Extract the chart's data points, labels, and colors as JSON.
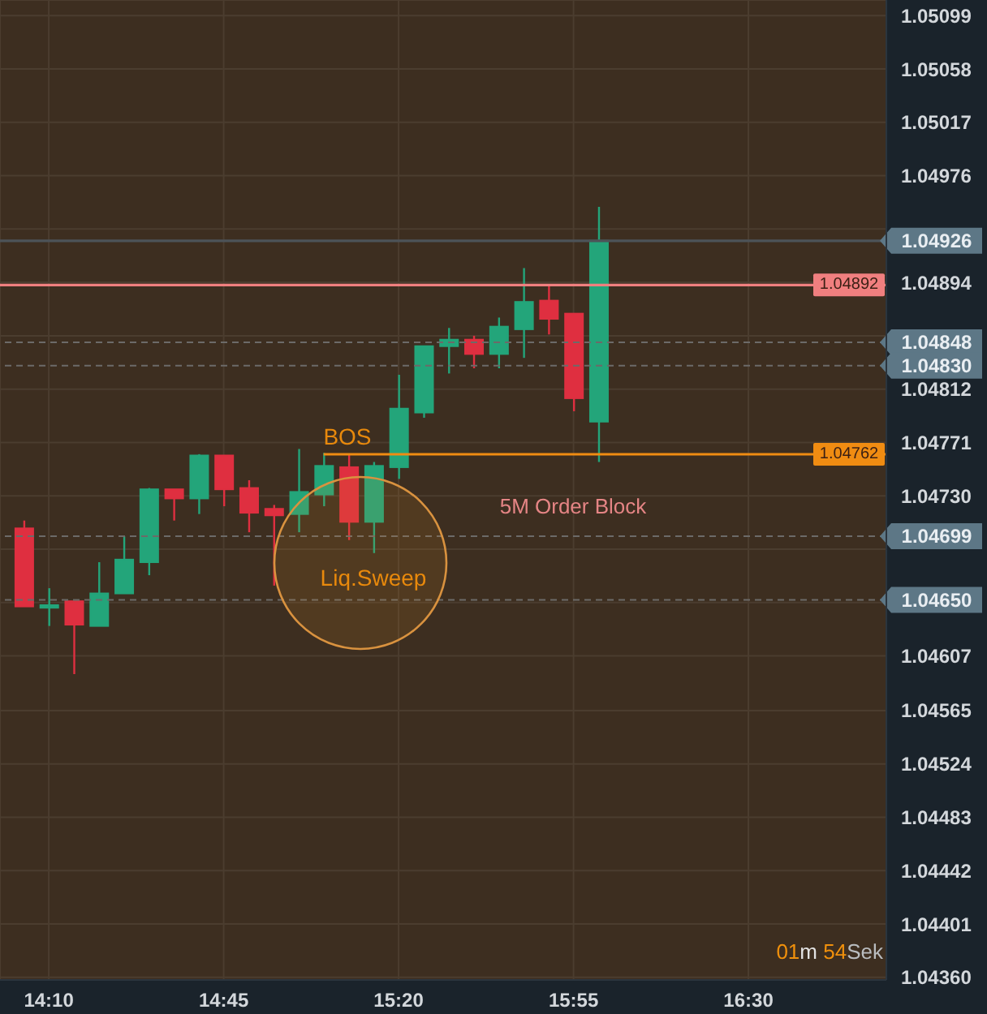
{
  "chart_data": {
    "type": "candlestick",
    "x": [
      14.0833,
      14.1667,
      14.25,
      14.3333,
      14.4167,
      14.5,
      14.5833,
      14.6667,
      14.75,
      14.8333,
      14.9167,
      15,
      15.0833,
      15.1667,
      15.25,
      15.3333,
      15.4167,
      15.5,
      15.5833,
      15.6667,
      15.75,
      15.8333,
      15.9167,
      16
    ],
    "ohlc": [
      [
        1.04705,
        1.04711,
        1.04645,
        1.04645
      ],
      [
        1.04644,
        1.04659,
        1.0463,
        1.04646
      ],
      [
        1.04649,
        1.04649,
        1.04593,
        1.04631
      ],
      [
        1.0463,
        1.04679,
        1.0463,
        1.04655
      ],
      [
        1.04655,
        1.04699,
        1.04655,
        1.04681
      ],
      [
        1.04679,
        1.04736,
        1.04669,
        1.04735
      ],
      [
        1.04735,
        1.04735,
        1.04711,
        1.04728
      ],
      [
        1.04728,
        1.04762,
        1.04716,
        1.04761
      ],
      [
        1.04761,
        1.04761,
        1.04722,
        1.04735
      ],
      [
        1.04736,
        1.04742,
        1.04702,
        1.04717
      ],
      [
        1.0472,
        1.04723,
        1.04661,
        1.04715
      ],
      [
        1.04716,
        1.04766,
        1.04702,
        1.04733
      ],
      [
        1.04731,
        1.04763,
        1.04722,
        1.04753
      ],
      [
        1.04752,
        1.04762,
        1.04696,
        1.0471
      ],
      [
        1.0471,
        1.04756,
        1.04686,
        1.04753
      ],
      [
        1.04752,
        1.04823,
        1.04743,
        1.04797
      ],
      [
        1.04794,
        1.04845,
        1.0479,
        1.04845
      ],
      [
        1.04845,
        1.04859,
        1.04824,
        1.0485
      ],
      [
        1.0485,
        1.04853,
        1.04828,
        1.04839
      ],
      [
        1.04839,
        1.04867,
        1.04828,
        1.0486
      ],
      [
        1.04858,
        1.04905,
        1.04836,
        1.04879
      ],
      [
        1.0488,
        1.04891,
        1.04854,
        1.04866
      ],
      [
        1.0487,
        1.0487,
        1.04795,
        1.04805
      ],
      [
        1.04787,
        1.04952,
        1.04756,
        1.04926
      ]
    ],
    "colors": [
      "#df2f40",
      "#23a57a",
      "#df2f40",
      "#23a57a",
      "#23a57a",
      "#23a57a",
      "#df2f40",
      "#23a57a",
      "#df2f40",
      "#df2f40",
      "#df2f40",
      "#23a57a",
      "#23a57a",
      "#df2f40",
      "#23a57a",
      "#23a57a",
      "#23a57a",
      "#23a57a",
      "#df2f40",
      "#23a57a",
      "#23a57a",
      "#df2f40",
      "#df2f40",
      "#23a57a"
    ],
    "series": [
      {
        "type": "line",
        "x": [
          15.0833,
          16.96
        ],
        "values": [
          1.04762,
          1.04762
        ],
        "color": "#f08c12",
        "value_labels": [
          null,
          "1.04762"
        ]
      }
    ],
    "xlim": [
      14.004,
      16.96
    ],
    "xticks": [
      {
        "value": 14.1667,
        "label": "14:10"
      },
      {
        "value": 14.75,
        "label": "14:45"
      },
      {
        "value": 15.3333,
        "label": "15:20"
      },
      {
        "value": 15.9167,
        "label": "15:55"
      },
      {
        "value": 16.5,
        "label": "16:30"
      }
    ],
    "ylim": [
      1.04358,
      1.05111
    ],
    "yticks": [
      1.05099,
      1.05058,
      1.05017,
      1.04976,
      {
        "value": 1.04935,
        "label": null
      },
      1.04894,
      {
        "value": 1.04853,
        "label": null
      },
      1.04812,
      1.04771,
      {
        "value": 1.0473,
        "label": "1.04730"
      },
      {
        "value": 1.04689,
        "label": null
      },
      {
        "value": 1.04648,
        "label": null
      },
      1.04607,
      1.04565,
      1.04524,
      1.04483,
      1.04442,
      1.04401,
      {
        "value": 1.0436,
        "label": "1.04360"
      }
    ],
    "ref_lines": [
      {
        "axis": "y",
        "value": 1.04926,
        "label": "1.04926",
        "color": "#4d5358"
      },
      {
        "axis": "y",
        "value": 1.04892,
        "label": "1.04892",
        "color": "#f07f7f"
      },
      {
        "axis": "y",
        "value": 1.04848,
        "label": "1.04848",
        "color": "#6c6a68",
        "line_style": "dashed"
      },
      {
        "axis": "y",
        "value": 1.0483,
        "label": "1.04830",
        "color": "#6c6a68",
        "line_style": "dashed"
      },
      {
        "axis": "y",
        "value": 1.04699,
        "label": "1.04699",
        "color": "#6c6a68",
        "line_style": "dashed"
      },
      {
        "axis": "y",
        "value": 1.0465,
        "label": "1.04650",
        "color": "#6c6a68",
        "line_style": "dashed"
      }
    ],
    "annotations": [
      "BOS",
      "Liq.Sweep",
      "5M Order Block",
      "01m 54Sek"
    ],
    "grid": true
  }
}
